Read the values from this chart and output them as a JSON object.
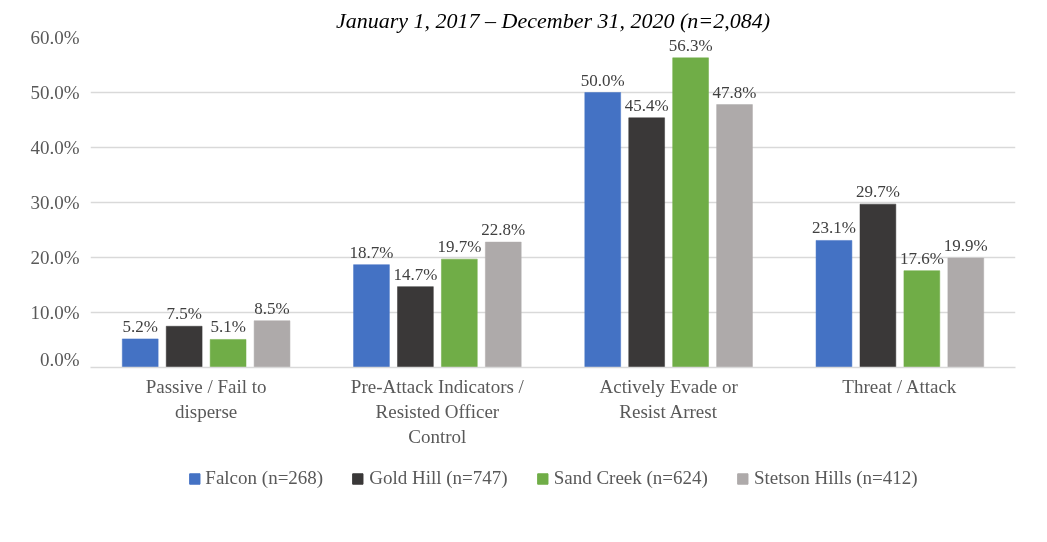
{
  "chart_data": {
    "type": "bar",
    "title": "January 1, 2017 – December 31, 2020 (n=2,084)",
    "categories": [
      "Passive / Fail to disperse",
      "Pre-Attack Indicators / Resisted Officer Control",
      "Actively Evade or Resist Arrest",
      "Threat / Attack"
    ],
    "series": [
      {
        "name": "Falcon (n=268)",
        "color": "#4472c4",
        "values": [
          5.2,
          18.7,
          50.0,
          23.1
        ],
        "value_labels": [
          "5.2%",
          "18.7%",
          "50.0%",
          "23.1%"
        ]
      },
      {
        "name": "Gold Hill (n=747)",
        "color": "#3a3838",
        "values": [
          7.5,
          14.7,
          45.4,
          29.7
        ],
        "value_labels": [
          "7.5%",
          "14.7%",
          "45.4%",
          "29.7%"
        ]
      },
      {
        "name": "Sand Creek (n=624)",
        "color": "#70ad47",
        "values": [
          5.1,
          19.7,
          56.3,
          17.6
        ],
        "value_labels": [
          "5.1%",
          "19.7%",
          "56.3%",
          "17.6%"
        ]
      },
      {
        "name": "Stetson Hills (n=412)",
        "color": "#aeaaaa",
        "values": [
          8.5,
          22.8,
          47.8,
          19.9
        ],
        "value_labels": [
          "8.5%",
          "22.8%",
          "47.8%",
          "19.9%"
        ]
      }
    ],
    "ylim": [
      0,
      60
    ],
    "yticks": [
      {
        "value": 0,
        "label": "0.0%"
      },
      {
        "value": 10,
        "label": "10.0%"
      },
      {
        "value": 20,
        "label": "20.0%"
      },
      {
        "value": 30,
        "label": "30.0%"
      },
      {
        "value": 40,
        "label": "40.0%"
      },
      {
        "value": 50,
        "label": "50.0%"
      },
      {
        "value": 60,
        "label": "60.0%"
      }
    ],
    "grid": "y",
    "legend": "bottom"
  }
}
